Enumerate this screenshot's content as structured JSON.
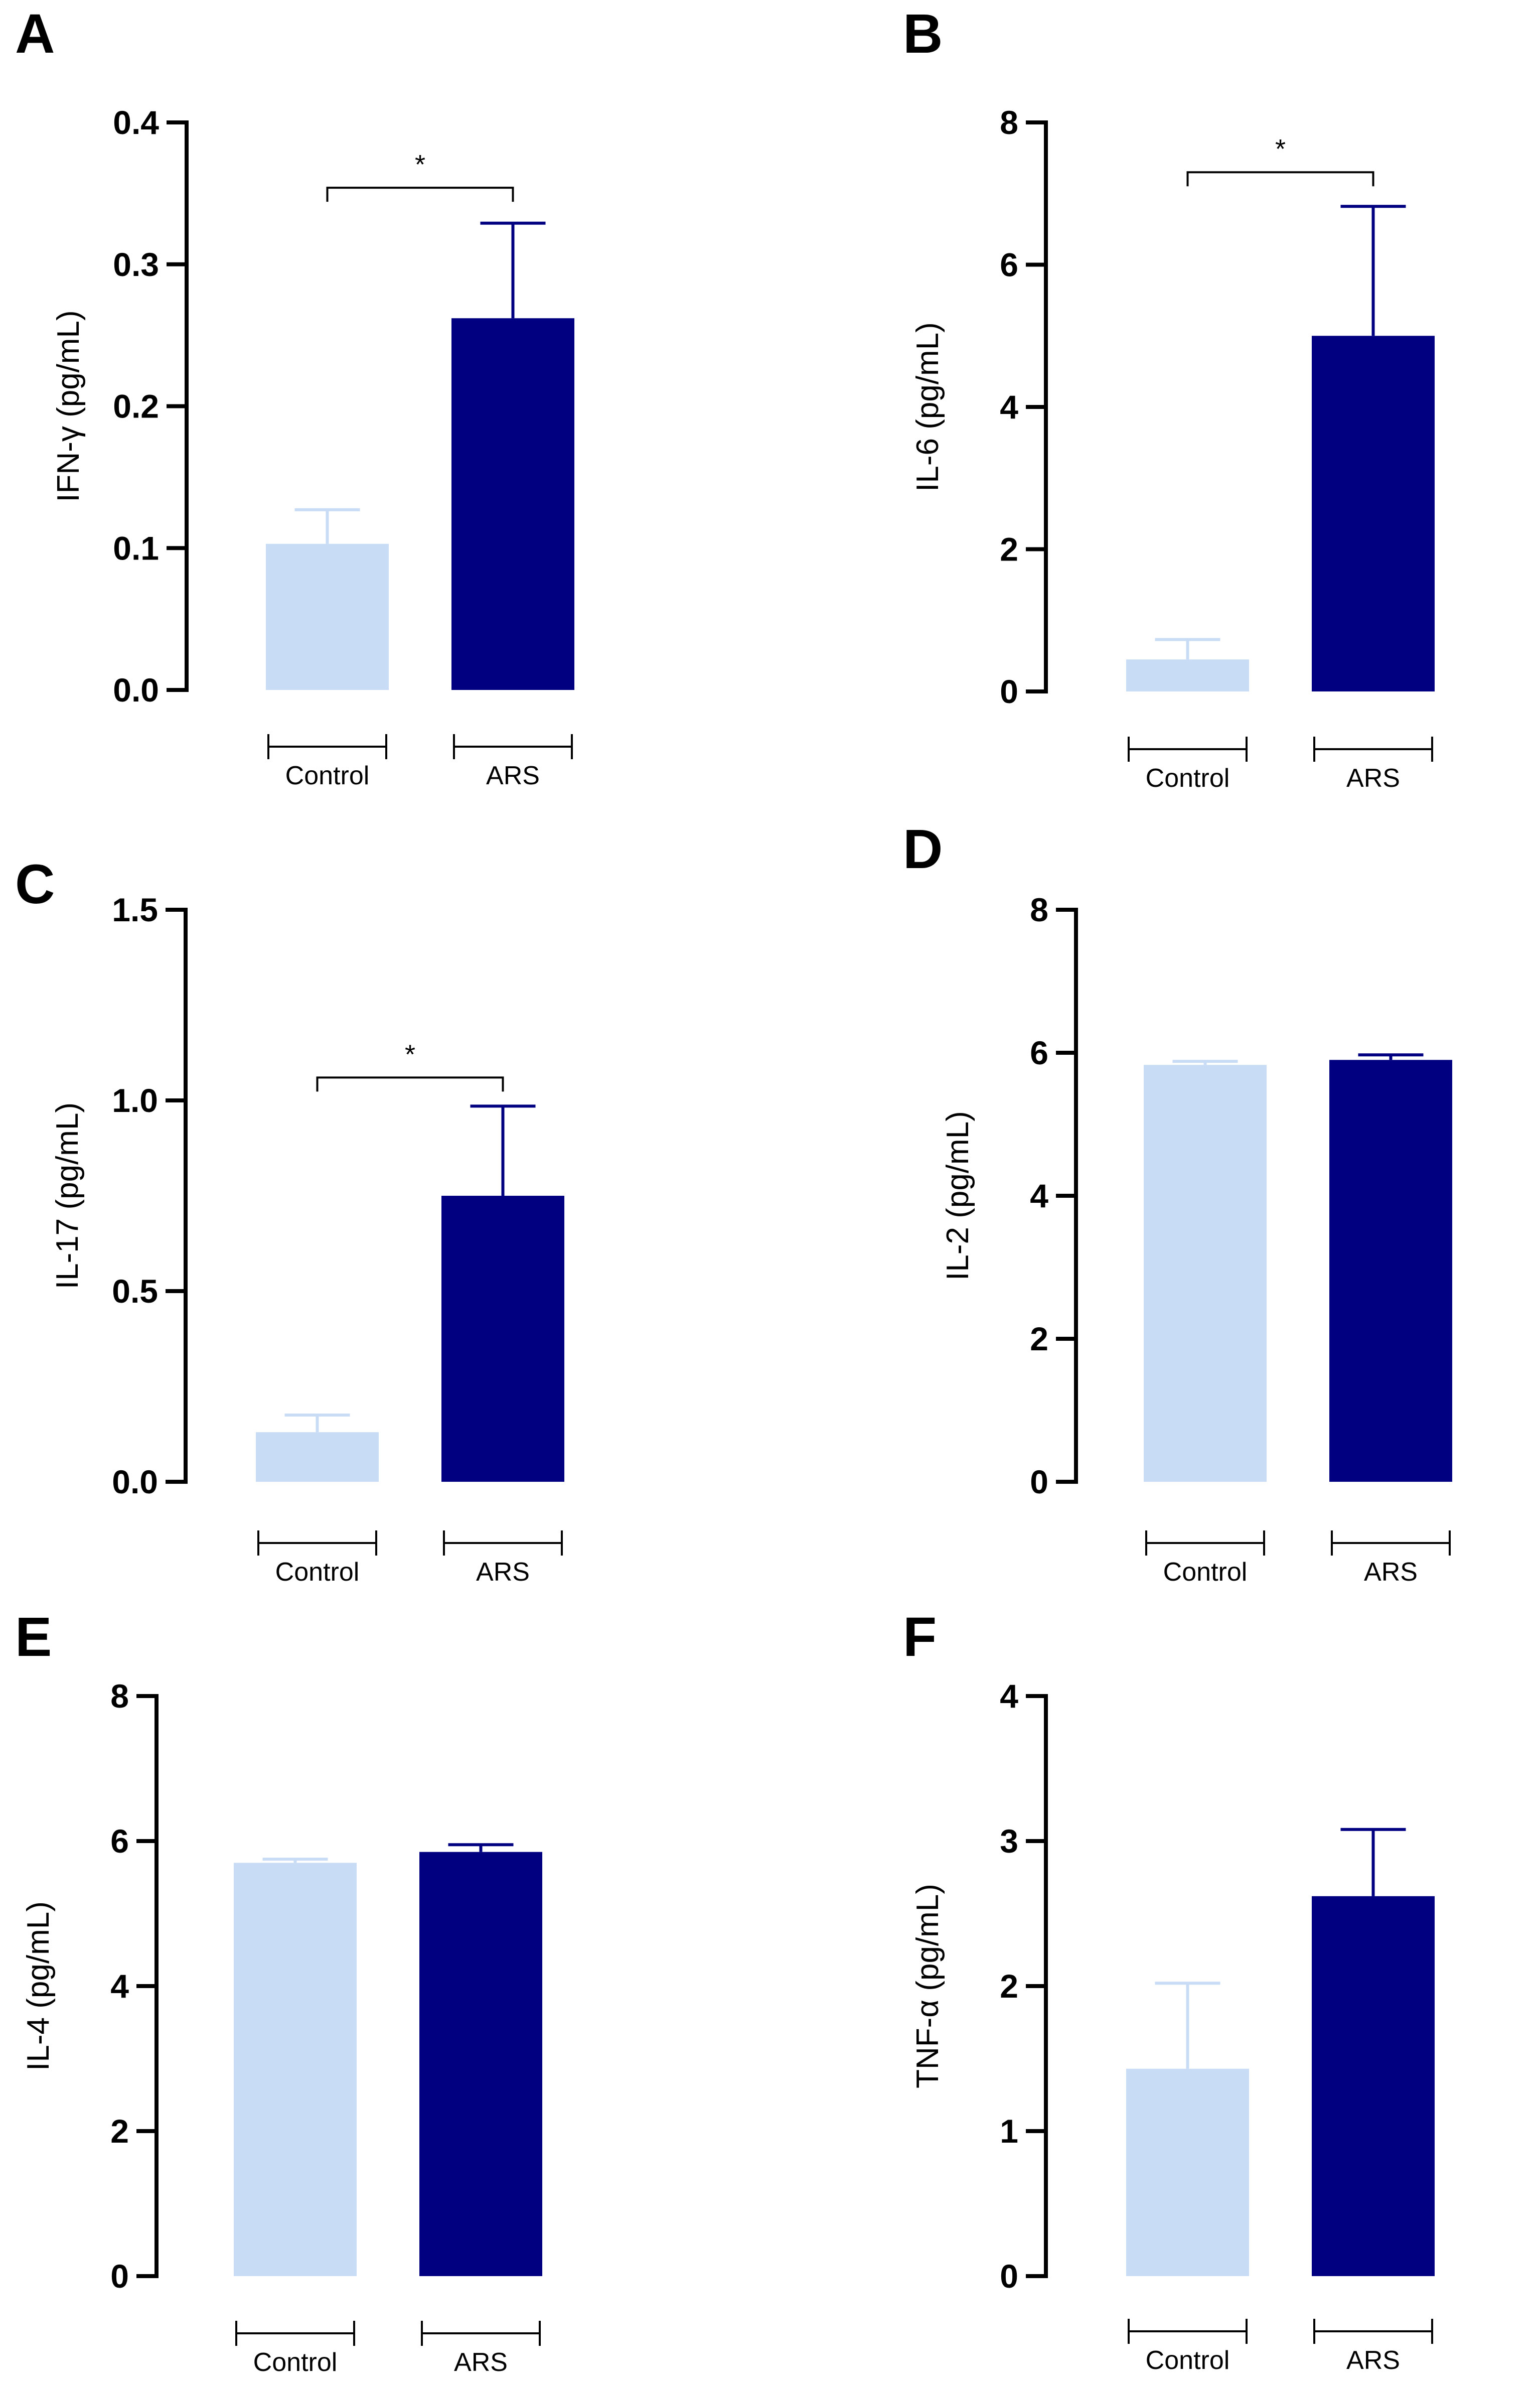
{
  "colors": {
    "control": "#c8dcf5",
    "ars": "#000080",
    "axis": "#000000"
  },
  "chart_data": [
    {
      "panel": "A",
      "type": "bar",
      "categories": [
        "Control",
        "ARS"
      ],
      "values": [
        0.103,
        0.262
      ],
      "errors": [
        0.024,
        0.067
      ],
      "ylabel": "IFN-γ  (pg/mL)",
      "ylim": [
        0,
        0.4
      ],
      "yticks": [
        "0.0",
        "0.1",
        "0.2",
        "0.3",
        "0.4"
      ],
      "significance": "*",
      "sig_y": 0.354
    },
    {
      "panel": "B",
      "type": "bar",
      "categories": [
        "Control",
        "ARS"
      ],
      "values": [
        0.45,
        5.0
      ],
      "errors": [
        0.28,
        1.82
      ],
      "ylabel": "IL-6 (pg/mL)",
      "ylim": [
        0,
        8
      ],
      "yticks": [
        "0",
        "2",
        "4",
        "6",
        "8"
      ],
      "significance": "*",
      "sig_y": 7.3
    },
    {
      "panel": "C",
      "type": "bar",
      "categories": [
        "Control",
        "ARS"
      ],
      "values": [
        0.13,
        0.75
      ],
      "errors": [
        0.045,
        0.235
      ],
      "ylabel": "IL-17 (pg/mL)",
      "ylim": [
        0,
        1.5
      ],
      "yticks": [
        "0.0",
        "0.5",
        "1.0",
        "1.5"
      ],
      "significance": "*",
      "sig_y": 1.06
    },
    {
      "panel": "D",
      "type": "bar",
      "categories": [
        "Control",
        "ARS"
      ],
      "values": [
        5.83,
        5.9
      ],
      "errors": [
        0.05,
        0.07
      ],
      "ylabel": "IL-2 (pg/mL)",
      "ylim": [
        0,
        8
      ],
      "yticks": [
        "0",
        "2",
        "4",
        "6",
        "8"
      ],
      "significance": "",
      "sig_y": null
    },
    {
      "panel": "E",
      "type": "bar",
      "categories": [
        "Control",
        "ARS"
      ],
      "values": [
        5.7,
        5.85
      ],
      "errors": [
        0.05,
        0.1
      ],
      "ylabel": "IL-4 (pg/mL)",
      "ylim": [
        0,
        8
      ],
      "yticks": [
        "0",
        "2",
        "4",
        "6",
        "8"
      ],
      "significance": "",
      "sig_y": null
    },
    {
      "panel": "F",
      "type": "bar",
      "categories": [
        "Control",
        "ARS"
      ],
      "values": [
        1.43,
        2.62
      ],
      "errors": [
        0.59,
        0.46
      ],
      "ylabel": "TNF-α (pg/mL)",
      "ylim": [
        0,
        4
      ],
      "yticks": [
        "0",
        "1",
        "2",
        "3",
        "4"
      ],
      "significance": "",
      "sig_y": null
    }
  ]
}
